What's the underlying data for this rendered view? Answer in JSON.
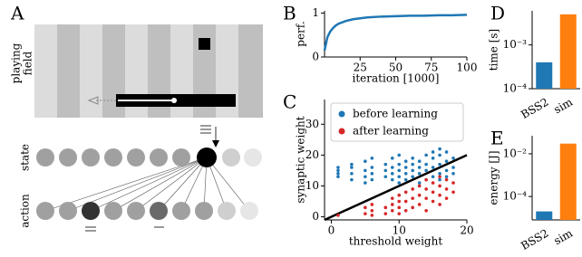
{
  "panel_a": {
    "panel": "A",
    "field_label": [
      "playing",
      "field"
    ],
    "state_label": "state",
    "action_label": "action"
  },
  "chart_data": [
    {
      "panel": "B",
      "type": "line",
      "ylabel": "perf.",
      "xlabel": "iteration [1000]",
      "x": [
        0,
        2,
        4,
        6,
        8,
        10,
        15,
        20,
        25,
        30,
        40,
        50,
        60,
        70,
        80,
        90,
        100
      ],
      "series": [
        {
          "color": "#1f77b4",
          "values": [
            0.15,
            0.45,
            0.58,
            0.66,
            0.72,
            0.76,
            0.82,
            0.86,
            0.88,
            0.9,
            0.92,
            0.93,
            0.94,
            0.94,
            0.95,
            0.95,
            0.96
          ]
        }
      ],
      "xlim": [
        0,
        100
      ],
      "ylim": [
        0,
        1.05
      ],
      "xticks": [
        25,
        50,
        75,
        100
      ],
      "yticks": [
        0,
        1
      ]
    },
    {
      "panel": "C",
      "type": "scatter",
      "ylabel": "synaptic weight",
      "xlabel": "threshold weight",
      "series": [
        {
          "name": "before learning",
          "color": "#1f77b4",
          "x": [
            1,
            1,
            1,
            1,
            3,
            3,
            3,
            3,
            5,
            5,
            5,
            5,
            6,
            6,
            6,
            6,
            8,
            8,
            8,
            9,
            9,
            9,
            9,
            10,
            10,
            10,
            10,
            10,
            11,
            11,
            11,
            11,
            12,
            12,
            12,
            12,
            13,
            13,
            13,
            13,
            14,
            14,
            14,
            14,
            15,
            15,
            15,
            15,
            16,
            16,
            16,
            16,
            16,
            17,
            17,
            17,
            17,
            18,
            18,
            18
          ],
          "values": [
            13,
            14,
            15,
            16,
            12,
            14,
            16,
            17,
            11,
            13,
            15,
            18,
            12,
            14,
            16,
            19,
            13,
            15,
            17,
            12,
            14,
            16,
            19,
            11,
            13,
            15,
            17,
            20,
            12,
            14,
            16,
            18,
            13,
            15,
            17,
            19,
            11,
            14,
            16,
            18,
            12,
            15,
            17,
            20,
            13,
            16,
            19,
            21,
            12,
            14,
            17,
            20,
            22,
            13,
            15,
            18,
            21,
            14,
            16,
            19
          ]
        },
        {
          "name": "after learning",
          "color": "#d62728",
          "x": [
            1,
            5,
            5,
            6,
            6,
            6,
            8,
            8,
            9,
            9,
            9,
            10,
            10,
            10,
            10,
            11,
            11,
            11,
            12,
            12,
            12,
            13,
            13,
            13,
            14,
            14,
            14,
            14,
            15,
            15,
            15,
            16,
            16,
            16,
            16,
            17,
            17,
            17,
            18,
            18
          ],
          "values": [
            0.5,
            1,
            3,
            0.5,
            2,
            4,
            1,
            3,
            2,
            4,
            6,
            1,
            3,
            5,
            7,
            2,
            5,
            8,
            3,
            6,
            9,
            4,
            7,
            10,
            2,
            6,
            9,
            12,
            5,
            8,
            11,
            4,
            7,
            10,
            13,
            6,
            9,
            12,
            8,
            11
          ]
        }
      ],
      "identity_line": true,
      "legend": "upper right",
      "xlim": [
        -1,
        20
      ],
      "ylim": [
        -1,
        38
      ],
      "xticks": [
        0,
        10,
        20
      ],
      "yticks": [
        0,
        10,
        20,
        30
      ]
    },
    {
      "panel": "D",
      "type": "bar",
      "ylabel": "time [s]",
      "log": true,
      "categories": [
        "BSS2",
        "sim"
      ],
      "values": [
        0.0004,
        0.005
      ],
      "colors": [
        "#1f77b4",
        "#ff7f0e"
      ],
      "ylim": [
        0.0001,
        0.006
      ],
      "yticks": [
        {
          "value": 0.0001,
          "label": "10⁻⁴"
        },
        {
          "value": 0.001,
          "label": "10⁻³"
        }
      ]
    },
    {
      "panel": "E",
      "type": "bar",
      "ylabel": "energy [J]",
      "log": true,
      "categories": [
        "BSS2",
        "sim"
      ],
      "values": [
        2e-05,
        0.03
      ],
      "colors": [
        "#1f77b4",
        "#ff7f0e"
      ],
      "ylim": [
        8e-06,
        0.07
      ],
      "yticks": [
        {
          "value": 0.0001,
          "label": "10⁻⁴"
        },
        {
          "value": 0.01,
          "label": "10⁻²"
        }
      ]
    }
  ]
}
